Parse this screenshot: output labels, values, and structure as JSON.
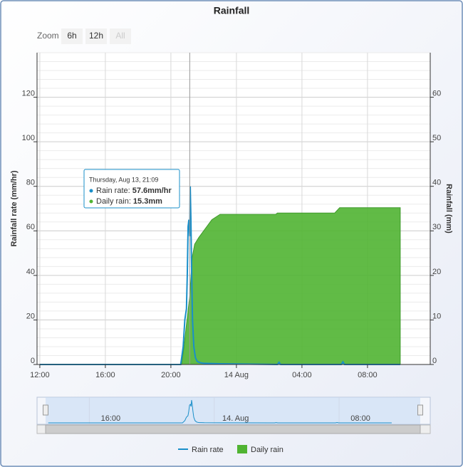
{
  "chart_data": {
    "type": "line",
    "title": "Rainfall",
    "zoom": {
      "label": "Zoom",
      "buttons": [
        "6h",
        "12h",
        "All"
      ]
    },
    "y_label": "Rainfall rate (mm/hr)",
    "y2_label": "Rainfall (mm)",
    "xlim": [
      -0.17,
      23.83
    ],
    "xticks": [
      {
        "value": 0,
        "label": "12:00"
      },
      {
        "value": 4,
        "label": "16:00"
      },
      {
        "value": 8,
        "label": "20:00"
      },
      {
        "value": 12,
        "label": "14 Aug"
      },
      {
        "value": 16,
        "label": "04:00"
      },
      {
        "value": 20,
        "label": "08:00"
      }
    ],
    "ylim": [
      0,
      140
    ],
    "yticks": [
      0,
      20,
      40,
      60,
      80,
      100,
      120
    ],
    "y2lim": [
      0,
      70
    ],
    "y2ticks": [
      0,
      10,
      20,
      30,
      40,
      50,
      60
    ],
    "grid": true,
    "minor_grid_step": 4,
    "tick_label_color": "#cc0000",
    "series": [
      {
        "name": "Daily rain",
        "type": "area",
        "axis": "y2",
        "color": "#50b432",
        "x": [
          0,
          8.65,
          8.8,
          8.95,
          9.15,
          9.3,
          9.45,
          9.7,
          10.0,
          10.5,
          11.0,
          14.4,
          14.5,
          18.0,
          18.3,
          22.0
        ],
        "values": [
          0,
          0,
          4,
          9,
          15.3,
          24,
          27,
          28.5,
          30,
          32.5,
          33.7,
          33.7,
          34,
          34,
          35.2,
          35.2
        ]
      },
      {
        "name": "Rain rate",
        "type": "line",
        "axis": "y",
        "color": "#1a8fc9",
        "x": [
          0,
          8.6,
          8.75,
          8.85,
          8.95,
          9.0,
          9.05,
          9.1,
          9.15,
          9.18,
          9.22,
          9.27,
          9.32,
          9.4,
          9.5,
          9.6,
          9.7,
          9.8,
          10.0,
          11.0,
          14.5,
          14.6,
          14.7,
          18.4,
          18.5,
          18.6,
          22.0
        ],
        "values": [
          0,
          0,
          8,
          20,
          25,
          40,
          62,
          65,
          57.6,
          80,
          66,
          40,
          20,
          8,
          3,
          1.5,
          1,
          0.8,
          0.5,
          0.3,
          0,
          1,
          0,
          0,
          1.2,
          0,
          0
        ]
      }
    ],
    "tooltip": {
      "crosshair_x": 9.15,
      "header": "Thursday, Aug 13, 21:09",
      "rows": [
        {
          "label": "Rain rate:",
          "value": "57.6mm/hr"
        },
        {
          "label": "Daily rain:",
          "value": "15.3mm"
        }
      ]
    },
    "navigator": {
      "ylim": [
        0,
        85
      ],
      "xticks": [
        {
          "value": 4,
          "label": "16:00"
        },
        {
          "value": 12,
          "label": "14. Aug"
        },
        {
          "value": 20,
          "label": "08:00"
        }
      ]
    }
  }
}
